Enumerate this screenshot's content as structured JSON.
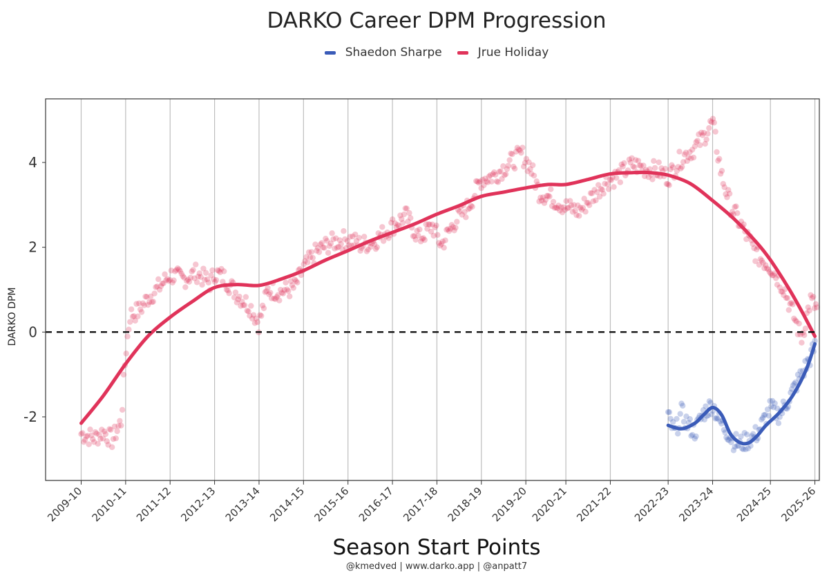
{
  "chart_data": {
    "type": "scatter",
    "title": "DARKO Career DPM Progression",
    "xlabel": "Season Start Points",
    "ylabel": "DARKO DPM",
    "credit": "@kmedved | www.darko.app | @anpatt7",
    "ylim": [
      -3.5,
      5.5
    ],
    "xlim": [
      -0.8,
      16.6
    ],
    "y_ticks": [
      -2,
      0,
      2,
      4
    ],
    "y_tick_labels": [
      "-2",
      "0",
      "2",
      "4"
    ],
    "x_tick_labels": [
      "2009-10",
      "2010-11",
      "2011-12",
      "2012-13",
      "2013-14",
      "2014-15",
      "2015-16",
      "2016-17",
      "2017-18",
      "2018-19",
      "2019-20",
      "2020-21",
      "2021-22",
      "2022-23",
      "2023-24",
      "2024-25",
      "2025-26"
    ],
    "x_tick_positions": [
      0,
      1,
      2,
      3,
      4,
      5,
      6,
      7,
      8,
      9,
      10,
      10.9,
      11.9,
      13.2,
      14.2,
      15.5,
      16.5
    ],
    "reference_line": {
      "y": 0,
      "style": "dashed"
    },
    "legend": [
      {
        "name": "Shaedon Sharpe",
        "color": "#3a5bb8"
      },
      {
        "name": "Jrue Holiday",
        "color": "#e0335a"
      }
    ],
    "series": [
      {
        "name": "Jrue Holiday",
        "color": "#e0335a",
        "smooth": [
          [
            0,
            -2.15
          ],
          [
            0.5,
            -1.5
          ],
          [
            1,
            -0.75
          ],
          [
            1.5,
            -0.1
          ],
          [
            2,
            0.35
          ],
          [
            2.5,
            0.72
          ],
          [
            3,
            1.05
          ],
          [
            3.5,
            1.12
          ],
          [
            4,
            1.1
          ],
          [
            4.5,
            1.25
          ],
          [
            5,
            1.45
          ],
          [
            5.5,
            1.7
          ],
          [
            6,
            1.92
          ],
          [
            6.5,
            2.15
          ],
          [
            7,
            2.35
          ],
          [
            7.5,
            2.55
          ],
          [
            8,
            2.78
          ],
          [
            8.5,
            2.98
          ],
          [
            9,
            3.2
          ],
          [
            9.5,
            3.3
          ],
          [
            10,
            3.4
          ],
          [
            10.5,
            3.48
          ],
          [
            10.9,
            3.48
          ],
          [
            11.4,
            3.6
          ],
          [
            11.9,
            3.73
          ],
          [
            12.4,
            3.76
          ],
          [
            12.8,
            3.76
          ],
          [
            13.2,
            3.7
          ],
          [
            13.7,
            3.5
          ],
          [
            14.2,
            3.1
          ],
          [
            14.7,
            2.65
          ],
          [
            15.2,
            2.1
          ],
          [
            15.5,
            1.7
          ],
          [
            15.9,
            1.05
          ],
          [
            16.2,
            0.5
          ],
          [
            16.5,
            -0.1
          ]
        ],
        "anchors": [
          [
            0,
            -2.4
          ],
          [
            0.3,
            -2.5
          ],
          [
            0.5,
            -2.35
          ],
          [
            0.7,
            -2.55
          ],
          [
            0.9,
            -2.1
          ],
          [
            1,
            -0.5
          ],
          [
            1.1,
            0.4
          ],
          [
            1.3,
            0.5
          ],
          [
            1.5,
            0.8
          ],
          [
            1.7,
            1.0
          ],
          [
            2,
            1.35
          ],
          [
            2.3,
            1.25
          ],
          [
            2.6,
            1.4
          ],
          [
            2.9,
            1.15
          ],
          [
            3,
            1.4
          ],
          [
            3.2,
            1.3
          ],
          [
            3.5,
            0.9
          ],
          [
            3.8,
            0.6
          ],
          [
            4,
            0.2
          ],
          [
            4.2,
            1.0
          ],
          [
            4.5,
            0.95
          ],
          [
            4.8,
            1.05
          ],
          [
            5,
            1.5
          ],
          [
            5.3,
            1.9
          ],
          [
            5.6,
            2.1
          ],
          [
            6,
            2.2
          ],
          [
            6.3,
            2.05
          ],
          [
            6.6,
            2.15
          ],
          [
            7,
            2.5
          ],
          [
            7.3,
            2.75
          ],
          [
            7.6,
            2.2
          ],
          [
            7.9,
            2.5
          ],
          [
            8.1,
            2.05
          ],
          [
            8.4,
            2.6
          ],
          [
            8.7,
            2.95
          ],
          [
            9,
            3.6
          ],
          [
            9.3,
            3.7
          ],
          [
            9.6,
            3.95
          ],
          [
            9.9,
            4.2
          ],
          [
            10.1,
            3.9
          ],
          [
            10.3,
            3.3
          ],
          [
            10.6,
            3.15
          ],
          [
            10.9,
            2.95
          ],
          [
            11.2,
            2.85
          ],
          [
            11.5,
            3.2
          ],
          [
            11.8,
            3.55
          ],
          [
            12.1,
            3.7
          ],
          [
            12.4,
            3.95
          ],
          [
            12.7,
            3.85
          ],
          [
            13,
            3.8
          ],
          [
            13.2,
            3.65
          ],
          [
            13.5,
            4.1
          ],
          [
            13.8,
            4.35
          ],
          [
            14,
            4.6
          ],
          [
            14.2,
            4.95
          ],
          [
            14.4,
            3.7
          ],
          [
            14.6,
            3.0
          ],
          [
            14.9,
            2.4
          ],
          [
            15.2,
            1.8
          ],
          [
            15.5,
            1.55
          ],
          [
            15.8,
            1.05
          ],
          [
            16.0,
            0.45
          ],
          [
            16.2,
            -0.15
          ],
          [
            16.4,
            0.75
          ],
          [
            16.55,
            0.55
          ]
        ]
      },
      {
        "name": "Shaedon Sharpe",
        "color": "#3a5bb8",
        "smooth": [
          [
            13.2,
            -2.2
          ],
          [
            13.5,
            -2.28
          ],
          [
            13.8,
            -2.15
          ],
          [
            14.0,
            -1.95
          ],
          [
            14.2,
            -1.78
          ],
          [
            14.4,
            -1.95
          ],
          [
            14.6,
            -2.4
          ],
          [
            14.8,
            -2.6
          ],
          [
            15.0,
            -2.62
          ],
          [
            15.2,
            -2.45
          ],
          [
            15.4,
            -2.2
          ],
          [
            15.7,
            -1.9
          ],
          [
            16.0,
            -1.5
          ],
          [
            16.3,
            -0.9
          ],
          [
            16.5,
            -0.28
          ]
        ],
        "anchors": [
          [
            13.2,
            -2.0
          ],
          [
            13.35,
            -2.4
          ],
          [
            13.5,
            -1.9
          ],
          [
            13.65,
            -2.2
          ],
          [
            13.8,
            -2.35
          ],
          [
            14.0,
            -1.9
          ],
          [
            14.2,
            -1.7
          ],
          [
            14.35,
            -2.1
          ],
          [
            14.5,
            -2.3
          ],
          [
            14.65,
            -2.55
          ],
          [
            14.8,
            -2.65
          ],
          [
            15.0,
            -2.55
          ],
          [
            15.2,
            -2.4
          ],
          [
            15.35,
            -2.1
          ],
          [
            15.5,
            -1.8
          ],
          [
            15.7,
            -1.95
          ],
          [
            15.85,
            -1.7
          ],
          [
            16.0,
            -1.4
          ],
          [
            16.2,
            -1.0
          ],
          [
            16.35,
            -0.7
          ],
          [
            16.5,
            -0.35
          ]
        ]
      }
    ]
  }
}
